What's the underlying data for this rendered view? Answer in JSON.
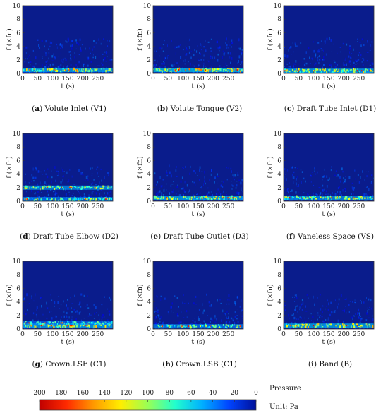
{
  "chart_data": [
    {
      "type": "heatmap",
      "panel_letter": "a",
      "caption": "Volute Inlet (V1)",
      "xlabel": "t (s)",
      "ylabel": "f (×fn)",
      "xlim": [
        0,
        300
      ],
      "ylim": [
        0,
        10
      ],
      "x_ticks": [
        0,
        50,
        100,
        150,
        200,
        250
      ],
      "y_ticks": [
        0,
        2,
        4,
        6,
        8,
        10
      ],
      "bands": [
        {
          "freq": 0.5,
          "intensity": 0.55
        }
      ]
    },
    {
      "type": "heatmap",
      "panel_letter": "b",
      "caption": "Volute Tongue (V2)",
      "xlabel": "t (s)",
      "ylabel": "f (×fn)",
      "xlim": [
        0,
        300
      ],
      "ylim": [
        0,
        10
      ],
      "x_ticks": [
        0,
        50,
        100,
        150,
        200,
        250
      ],
      "y_ticks": [
        0,
        2,
        4,
        6,
        8,
        10
      ],
      "bands": [
        {
          "freq": 0.5,
          "intensity": 0.6
        }
      ]
    },
    {
      "type": "heatmap",
      "panel_letter": "c",
      "caption": "Draft Tube Inlet (D1)",
      "xlabel": "t (s)",
      "ylabel": "f (×fn)",
      "xlim": [
        0,
        300
      ],
      "ylim": [
        0,
        10
      ],
      "x_ticks": [
        0,
        50,
        100,
        150,
        200,
        250
      ],
      "y_ticks": [
        0,
        2,
        4,
        6,
        8,
        10
      ],
      "bands": [
        {
          "freq": 0.4,
          "intensity": 0.55
        }
      ]
    },
    {
      "type": "heatmap",
      "panel_letter": "d",
      "caption": "Draft Tube Elbow (D2)",
      "xlabel": "t (s)",
      "ylabel": "f (×fn)",
      "xlim": [
        0,
        300
      ],
      "ylim": [
        0,
        10
      ],
      "x_ticks": [
        0,
        50,
        100,
        150,
        200,
        250
      ],
      "y_ticks": [
        0,
        2,
        4,
        6,
        8,
        10
      ],
      "bands": [
        {
          "freq": 2.0,
          "intensity": 0.5
        },
        {
          "freq": 0.3,
          "intensity": 0.45
        }
      ]
    },
    {
      "type": "heatmap",
      "panel_letter": "e",
      "caption": "Draft Tube Outlet (D3)",
      "xlabel": "t (s)",
      "ylabel": "f (×fn)",
      "xlim": [
        0,
        300
      ],
      "ylim": [
        0,
        10
      ],
      "x_ticks": [
        0,
        50,
        100,
        150,
        200,
        250
      ],
      "y_ticks": [
        0,
        2,
        4,
        6,
        8,
        10
      ],
      "bands": [
        {
          "freq": 0.5,
          "intensity": 0.55
        }
      ]
    },
    {
      "type": "heatmap",
      "panel_letter": "f",
      "caption": "Vaneless Space (VS)",
      "xlabel": "t (s)",
      "ylabel": "f (×fn)",
      "xlim": [
        0,
        300
      ],
      "ylim": [
        0,
        10
      ],
      "x_ticks": [
        0,
        50,
        100,
        150,
        200,
        250
      ],
      "y_ticks": [
        0,
        2,
        4,
        6,
        8,
        10
      ],
      "bands": [
        {
          "freq": 0.5,
          "intensity": 0.5
        }
      ]
    },
    {
      "type": "heatmap",
      "panel_letter": "g",
      "caption": "Crown.LSF (C1)",
      "xlabel": "t (s)",
      "ylabel": "f (×fn)",
      "xlim": [
        0,
        300
      ],
      "ylim": [
        0,
        10
      ],
      "x_ticks": [
        0,
        50,
        100,
        150,
        200,
        250
      ],
      "y_ticks": [
        0,
        2,
        4,
        6,
        8,
        10
      ],
      "bands": [
        {
          "freq": 0.5,
          "intensity": 0.55
        },
        {
          "freq": 0.9,
          "intensity": 0.4
        }
      ]
    },
    {
      "type": "heatmap",
      "panel_letter": "h",
      "caption": "Crown.LSB (C1)",
      "xlabel": "t (s)",
      "ylabel": "f (×fn)",
      "xlim": [
        0,
        300
      ],
      "ylim": [
        0,
        10
      ],
      "x_ticks": [
        0,
        50,
        100,
        150,
        200,
        250
      ],
      "y_ticks": [
        0,
        2,
        4,
        6,
        8,
        10
      ],
      "bands": [
        {
          "freq": 0.4,
          "intensity": 0.45
        }
      ]
    },
    {
      "type": "heatmap",
      "panel_letter": "i",
      "caption": "Band (B)",
      "xlabel": "t (s)",
      "ylabel": "f (×fn)",
      "xlim": [
        0,
        300
      ],
      "ylim": [
        0,
        10
      ],
      "x_ticks": [
        0,
        50,
        100,
        150,
        200,
        250
      ],
      "y_ticks": [
        0,
        2,
        4,
        6,
        8,
        10
      ],
      "bands": [
        {
          "freq": 0.5,
          "intensity": 0.55
        }
      ]
    }
  ],
  "colorbar": {
    "title": "Pressure",
    "unit_label": "Unit: Pa",
    "ticks": [
      200,
      180,
      160,
      140,
      120,
      100,
      80,
      60,
      40,
      20,
      0
    ],
    "range": [
      200,
      0
    ],
    "colormap": "jet",
    "colors": [
      "#c00000",
      "#ff2a00",
      "#ff9900",
      "#ffee00",
      "#99ff55",
      "#22ffcc",
      "#00b0ff",
      "#0044ff",
      "#00109a"
    ]
  },
  "background_color": "#0a1c8c"
}
